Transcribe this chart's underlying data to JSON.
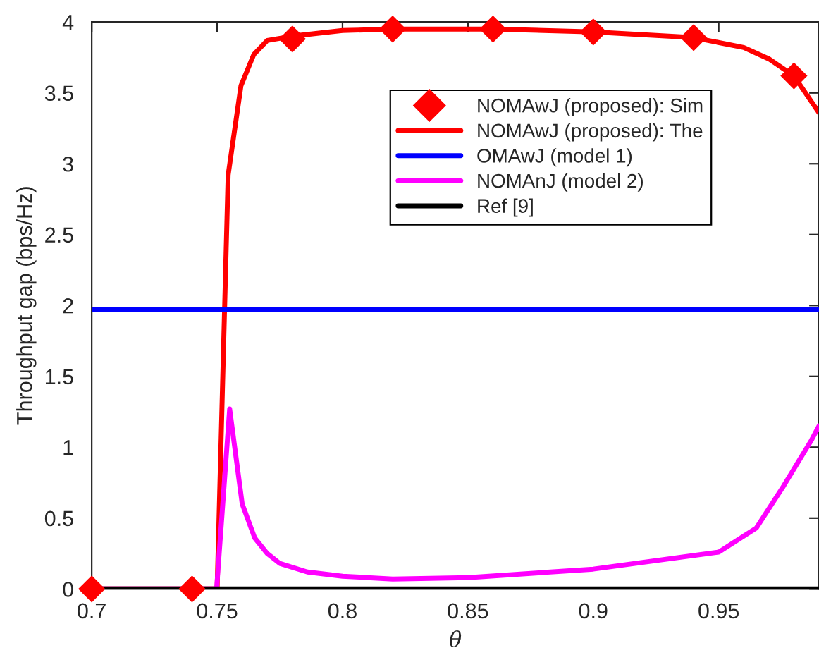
{
  "chart_data": {
    "type": "line",
    "xlabel": "θ",
    "ylabel": "Throughput gap (bps/Hz)",
    "xlim": [
      0.7,
      0.99
    ],
    "xticks": [
      {
        "value": 0.7,
        "label": "0.7"
      },
      {
        "value": 0.75,
        "label": "0.75"
      },
      {
        "value": 0.8,
        "label": "0.8"
      },
      {
        "value": 0.85,
        "label": "0.85"
      },
      {
        "value": 0.9,
        "label": "0.9"
      },
      {
        "value": 0.95,
        "label": "0.95"
      }
    ],
    "ylim": [
      0,
      4
    ],
    "yticks": [
      0,
      0.5,
      1,
      1.5,
      2,
      2.5,
      3,
      3.5,
      4
    ],
    "grid": false,
    "legend": "top right",
    "series": [
      {
        "name": "NOMAwJ (proposed): Sim",
        "type": "scatter",
        "marker": "diamond",
        "color": "#ff0000",
        "x": [
          0.7,
          0.74,
          0.78,
          0.82,
          0.86,
          0.9,
          0.94,
          0.98
        ],
        "values": [
          0,
          0,
          3.88,
          3.95,
          3.95,
          3.93,
          3.89,
          3.62
        ]
      },
      {
        "name": "NOMAwJ (proposed): The",
        "type": "line",
        "color": "#ff0000",
        "x": [
          0.7,
          0.75,
          0.7544,
          0.7595,
          0.7646,
          0.77,
          0.78,
          0.8,
          0.82,
          0.86,
          0.9,
          0.94,
          0.96,
          0.97,
          0.98,
          0.99
        ],
        "values": [
          0,
          0,
          2.92,
          3.55,
          3.77,
          3.87,
          3.9,
          3.94,
          3.95,
          3.95,
          3.93,
          3.89,
          3.82,
          3.74,
          3.62,
          3.36
        ]
      },
      {
        "name": "OMAwJ (model 1)",
        "type": "line",
        "color": "#0000ff",
        "x": [
          0.7,
          0.99
        ],
        "values": [
          1.97,
          1.97
        ]
      },
      {
        "name": "NOMAnJ (model 2)",
        "type": "line",
        "color": "#ff00ff",
        "x": [
          0.7,
          0.7498,
          0.755,
          0.76,
          0.765,
          0.77,
          0.775,
          0.786,
          0.8,
          0.82,
          0.85,
          0.9,
          0.95,
          0.965,
          0.976,
          0.987,
          0.99
        ],
        "values": [
          0,
          0,
          1.27,
          0.6,
          0.36,
          0.25,
          0.18,
          0.12,
          0.09,
          0.07,
          0.08,
          0.14,
          0.26,
          0.43,
          0.73,
          1.05,
          1.15
        ]
      },
      {
        "name": "Ref [9]",
        "type": "line",
        "color": "#000000",
        "x": [
          0.7,
          0.99
        ],
        "values": [
          0,
          0
        ]
      }
    ]
  }
}
